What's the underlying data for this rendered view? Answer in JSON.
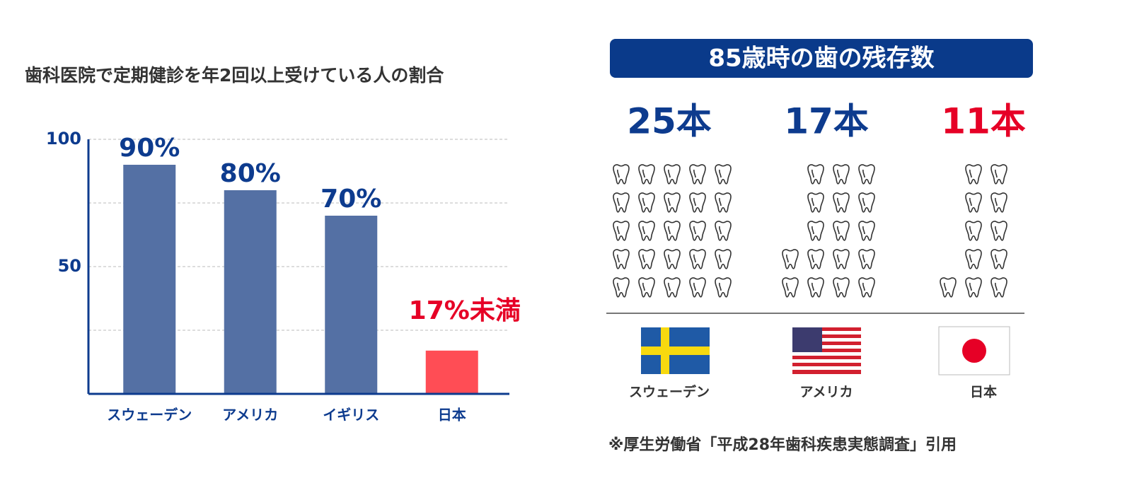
{
  "chart_data": [
    {
      "type": "bar",
      "title": "歯科医院で定期健診を年2回以上受けている人の割合",
      "categories": [
        "スウェーデン",
        "アメリカ",
        "イギリス",
        "日本"
      ],
      "values": [
        90,
        80,
        70,
        17
      ],
      "value_labels": [
        "90%",
        "80%",
        "70%",
        "17%未満"
      ],
      "colors": [
        "#5470a4",
        "#5470a4",
        "#5470a4",
        "#ff4d55"
      ],
      "label_colors": [
        "#0d3b8e",
        "#0d3b8e",
        "#0d3b8e",
        "#e60026"
      ],
      "ylim": [
        0,
        100
      ],
      "yticks": [
        50,
        100
      ],
      "minor_yticks": [
        25,
        75
      ],
      "grid": true
    },
    {
      "type": "pictogram",
      "title": "85歳時の歯の残存数",
      "categories": [
        "スウェーデン",
        "アメリカ",
        "日本"
      ],
      "values": [
        25,
        17,
        11
      ],
      "value_labels": [
        "25本",
        "17本",
        "11本"
      ],
      "colors": [
        "#0d3b8e",
        "#0d3b8e",
        "#e60026"
      ]
    }
  ],
  "source": "※厚生労働省「平成28年歯科疾患実態調査」引用"
}
